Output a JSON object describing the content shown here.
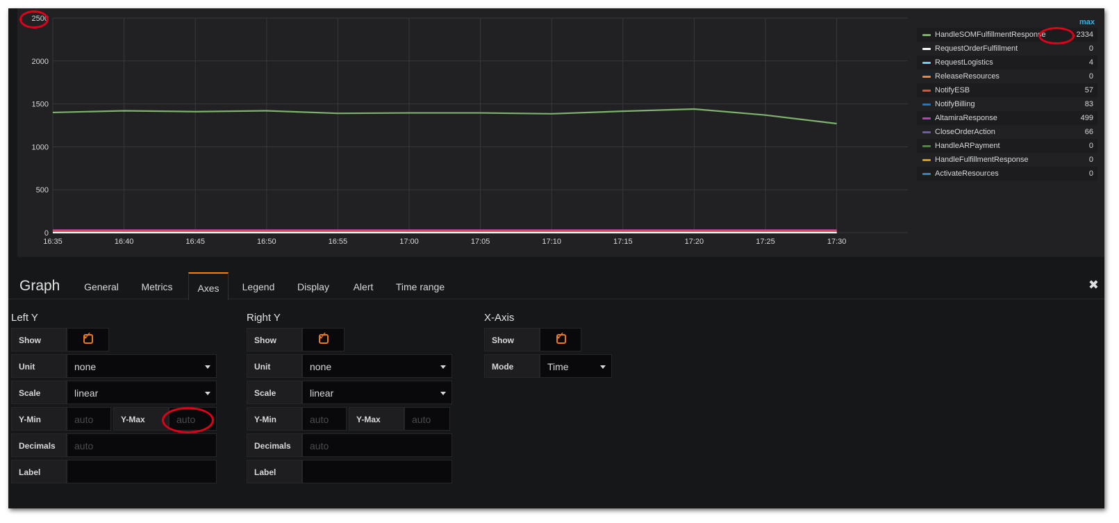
{
  "chart_data": {
    "type": "line",
    "x": [
      "16:35",
      "16:40",
      "16:45",
      "16:50",
      "16:55",
      "17:00",
      "17:05",
      "17:10",
      "17:15",
      "17:20",
      "17:25",
      "17:30"
    ],
    "xticks": [
      "16:35",
      "16:40",
      "16:45",
      "16:50",
      "16:55",
      "17:00",
      "17:05",
      "17:10",
      "17:15",
      "17:20",
      "17:25",
      "17:30"
    ],
    "yticks": [
      "0",
      "500",
      "1000",
      "1500",
      "2000",
      "2500"
    ],
    "ylim": [
      0,
      2500
    ],
    "grid": true,
    "legend_position": "right",
    "legend_value_header": "max",
    "series": [
      {
        "name": "HandleSOMFulfillmentResponse",
        "color": "#7eb26d",
        "max": "2334",
        "values": [
          1400,
          1420,
          1410,
          1420,
          1390,
          1395,
          1395,
          1385,
          1415,
          1440,
          1370,
          1270
        ]
      },
      {
        "name": "RequestOrderFulfillment",
        "color": "#ffffff",
        "max": "0",
        "values": [
          0,
          0,
          0,
          0,
          0,
          0,
          0,
          0,
          0,
          0,
          0,
          0
        ]
      },
      {
        "name": "RequestLogistics",
        "color": "#6ed0e0",
        "max": "4",
        "values": [
          2,
          2,
          2,
          2,
          2,
          2,
          2,
          2,
          2,
          2,
          2,
          2
        ]
      },
      {
        "name": "ReleaseResources",
        "color": "#ef843c",
        "max": "0",
        "values": [
          0,
          0,
          0,
          0,
          0,
          0,
          0,
          0,
          0,
          0,
          0,
          0
        ]
      },
      {
        "name": "NotifyESB",
        "color": "#e24d42",
        "max": "57",
        "values": [
          20,
          20,
          20,
          20,
          20,
          20,
          20,
          20,
          20,
          20,
          20,
          20
        ]
      },
      {
        "name": "NotifyBilling",
        "color": "#1f78c1",
        "max": "83",
        "values": [
          10,
          10,
          10,
          10,
          10,
          10,
          10,
          10,
          10,
          10,
          10,
          10
        ]
      },
      {
        "name": "AltamiraResponse",
        "color": "#ba43a9",
        "max": "499",
        "values": [
          30,
          30,
          30,
          30,
          30,
          30,
          30,
          30,
          30,
          30,
          30,
          30
        ]
      },
      {
        "name": "CloseOrderAction",
        "color": "#705da0",
        "max": "66",
        "values": [
          25,
          25,
          25,
          25,
          25,
          25,
          25,
          25,
          25,
          25,
          25,
          25
        ]
      },
      {
        "name": "HandleARPayment",
        "color": "#508642",
        "max": "0",
        "values": [
          0,
          0,
          0,
          0,
          0,
          0,
          0,
          0,
          0,
          0,
          0,
          0
        ]
      },
      {
        "name": "HandleFulfillmentResponse",
        "color": "#cca300",
        "max": "0",
        "values": [
          0,
          0,
          0,
          0,
          0,
          0,
          0,
          0,
          0,
          0,
          0,
          0
        ]
      },
      {
        "name": "ActivateResources",
        "color": "#447ebc",
        "max": "0",
        "values": [
          0,
          0,
          0,
          0,
          0,
          0,
          0,
          0,
          0,
          0,
          0,
          0
        ]
      }
    ]
  },
  "editor": {
    "title": "Graph",
    "close_icon": "✖",
    "tabs": [
      "General",
      "Metrics",
      "Axes",
      "Legend",
      "Display",
      "Alert",
      "Time range"
    ],
    "active_tab": "Axes"
  },
  "left_y": {
    "title": "Left Y",
    "show_label": "Show",
    "unit_label": "Unit",
    "unit_value": "none",
    "scale_label": "Scale",
    "scale_value": "linear",
    "ymin_label": "Y-Min",
    "ymin_placeholder": "auto",
    "ymax_label": "Y-Max",
    "ymax_placeholder": "auto",
    "decimals_label": "Decimals",
    "decimals_placeholder": "auto",
    "label_label": "Label",
    "label_value": ""
  },
  "right_y": {
    "title": "Right Y",
    "show_label": "Show",
    "unit_label": "Unit",
    "unit_value": "none",
    "scale_label": "Scale",
    "scale_value": "linear",
    "ymin_label": "Y-Min",
    "ymin_placeholder": "auto",
    "ymax_label": "Y-Max",
    "ymax_placeholder": "auto",
    "decimals_label": "Decimals",
    "decimals_placeholder": "auto",
    "label_label": "Label",
    "label_value": ""
  },
  "x_axis": {
    "title": "X-Axis",
    "show_label": "Show",
    "mode_label": "Mode",
    "mode_value": "Time"
  },
  "colors": {
    "accent": "#eb7b18",
    "highlight_ring": "#e0001a",
    "legend_header": "#33b5e5"
  }
}
